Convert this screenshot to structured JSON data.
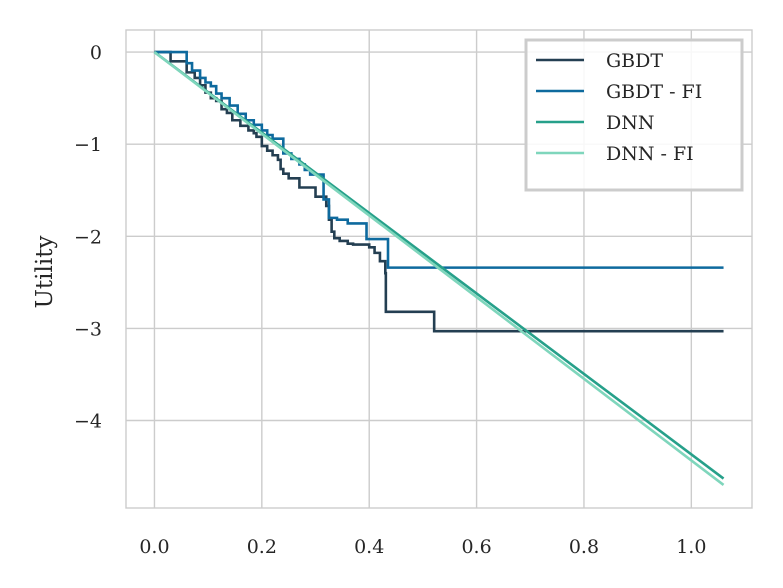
{
  "chart_data": {
    "type": "line",
    "title": "",
    "xlabel": "",
    "ylabel": "Utility",
    "xlim": [
      -0.053,
      1.113
    ],
    "ylim": [
      -4.95,
      0.24
    ],
    "xticks": [
      0.0,
      0.2,
      0.4,
      0.6,
      0.8,
      1.0
    ],
    "xtick_labels": [
      "0.0",
      "0.2",
      "0.4",
      "0.6",
      "0.8",
      "1.0"
    ],
    "yticks": [
      0,
      -1,
      -2,
      -3,
      -4
    ],
    "ytick_labels": [
      "0",
      "−1",
      "−2",
      "−3",
      "−4"
    ],
    "grid": true,
    "legend_position": "top-right",
    "series": [
      {
        "name": "GBDT",
        "color": "#243f52",
        "points": [
          [
            0.0,
            0.0
          ],
          [
            0.03,
            -0.1
          ],
          [
            0.045,
            -0.1
          ],
          [
            0.06,
            -0.22
          ],
          [
            0.075,
            -0.28
          ],
          [
            0.085,
            -0.36
          ],
          [
            0.095,
            -0.44
          ],
          [
            0.105,
            -0.5
          ],
          [
            0.115,
            -0.53
          ],
          [
            0.125,
            -0.62
          ],
          [
            0.135,
            -0.66
          ],
          [
            0.145,
            -0.74
          ],
          [
            0.16,
            -0.8
          ],
          [
            0.175,
            -0.85
          ],
          [
            0.185,
            -0.88
          ],
          [
            0.19,
            -0.92
          ],
          [
            0.2,
            -1.02
          ],
          [
            0.21,
            -1.07
          ],
          [
            0.22,
            -1.12
          ],
          [
            0.23,
            -1.17
          ],
          [
            0.235,
            -1.27
          ],
          [
            0.24,
            -1.32
          ],
          [
            0.25,
            -1.37
          ],
          [
            0.26,
            -1.37
          ],
          [
            0.27,
            -1.47
          ],
          [
            0.28,
            -1.47
          ],
          [
            0.3,
            -1.57
          ],
          [
            0.32,
            -1.67
          ],
          [
            0.325,
            -1.82
          ],
          [
            0.33,
            -1.95
          ],
          [
            0.335,
            -2.02
          ],
          [
            0.345,
            -2.05
          ],
          [
            0.36,
            -2.08
          ],
          [
            0.37,
            -2.09
          ],
          [
            0.39,
            -2.09
          ],
          [
            0.4,
            -2.12
          ],
          [
            0.41,
            -2.18
          ],
          [
            0.42,
            -2.27
          ],
          [
            0.43,
            -2.4
          ],
          [
            0.431,
            -2.82
          ],
          [
            0.52,
            -2.82
          ],
          [
            0.521,
            -3.03
          ],
          [
            1.06,
            -3.03
          ]
        ],
        "step": true
      },
      {
        "name": "GBDT - FI",
        "color": "#0e6a9e",
        "points": [
          [
            0.0,
            0.0
          ],
          [
            0.05,
            0.0
          ],
          [
            0.06,
            -0.12
          ],
          [
            0.07,
            -0.2
          ],
          [
            0.085,
            -0.28
          ],
          [
            0.095,
            -0.33
          ],
          [
            0.105,
            -0.37
          ],
          [
            0.115,
            -0.45
          ],
          [
            0.125,
            -0.5
          ],
          [
            0.14,
            -0.58
          ],
          [
            0.155,
            -0.67
          ],
          [
            0.17,
            -0.74
          ],
          [
            0.185,
            -0.79
          ],
          [
            0.2,
            -0.85
          ],
          [
            0.21,
            -0.9
          ],
          [
            0.22,
            -0.94
          ],
          [
            0.235,
            -0.94
          ],
          [
            0.24,
            -1.1
          ],
          [
            0.255,
            -1.16
          ],
          [
            0.27,
            -1.22
          ],
          [
            0.28,
            -1.28
          ],
          [
            0.29,
            -1.33
          ],
          [
            0.31,
            -1.33
          ],
          [
            0.315,
            -1.6
          ],
          [
            0.325,
            -1.8
          ],
          [
            0.34,
            -1.82
          ],
          [
            0.36,
            -1.86
          ],
          [
            0.39,
            -1.86
          ],
          [
            0.395,
            -2.03
          ],
          [
            0.43,
            -2.03
          ],
          [
            0.435,
            -2.34
          ],
          [
            1.06,
            -2.34
          ]
        ],
        "step": true
      },
      {
        "name": "DNN",
        "color": "#26a08a",
        "points": [
          [
            0.0,
            0.0
          ],
          [
            1.06,
            -4.63
          ]
        ],
        "step": false
      },
      {
        "name": "DNN - FI",
        "color": "#7fd6bc",
        "points": [
          [
            0.0,
            0.0
          ],
          [
            1.06,
            -4.7
          ]
        ],
        "step": false
      }
    ]
  }
}
